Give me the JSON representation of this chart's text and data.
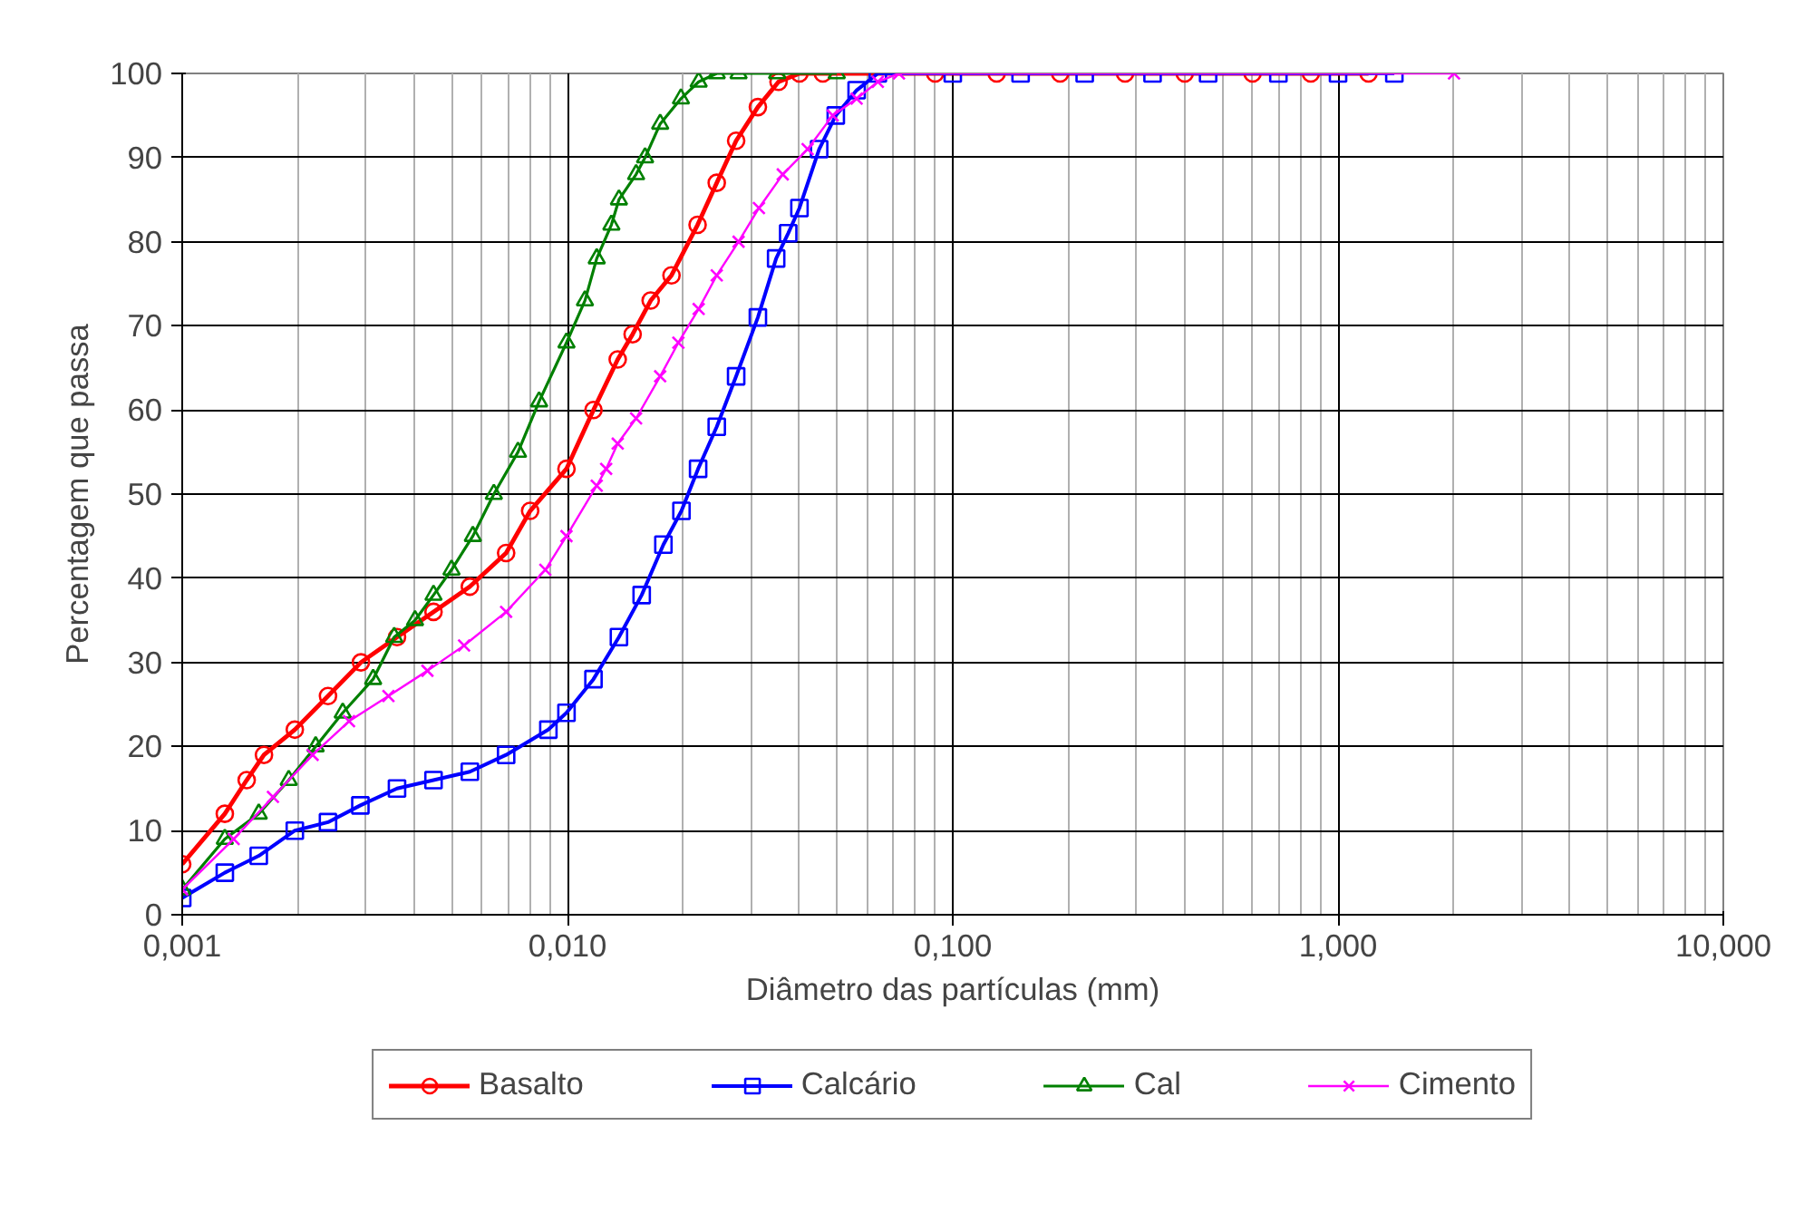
{
  "chart_data": {
    "type": "line",
    "xlabel": "Diâmetro das partículas (mm)",
    "ylabel": "Percentagem que passa",
    "log": "x",
    "grid": true,
    "legend": "bottom",
    "xlim": [
      0.001,
      10
    ],
    "xticks": [
      {
        "value": 0.001,
        "label": "0,001"
      },
      {
        "value": 0.01,
        "label": "0,010"
      },
      {
        "value": 0.1,
        "label": "0,100"
      },
      {
        "value": 1,
        "label": "1,000"
      },
      {
        "value": 10,
        "label": "10,000"
      }
    ],
    "ylim": [
      0,
      100
    ],
    "yticks": [
      0,
      10,
      20,
      30,
      40,
      50,
      60,
      70,
      80,
      90,
      100
    ],
    "series": [
      {
        "name": "Basalto",
        "color": "#ff0000",
        "marker": "circle",
        "x": [
          0.001,
          0.00129,
          0.00147,
          0.00163,
          0.00196,
          0.00239,
          0.00291,
          0.00361,
          0.00449,
          0.00558,
          0.00693,
          0.008,
          0.00994,
          0.01168,
          0.0135,
          0.01476,
          0.01644,
          0.01862,
          0.02176,
          0.0244,
          0.0274,
          0.0312,
          0.0353,
          0.04,
          0.046,
          0.09,
          0.13,
          0.19,
          0.28,
          0.4,
          0.6,
          0.85,
          1.2
        ],
        "values": [
          6,
          12,
          16,
          19,
          22,
          26,
          30,
          33,
          36,
          39,
          43,
          48,
          53,
          60,
          66,
          69,
          73,
          76,
          82,
          87,
          92,
          96,
          99,
          100,
          100,
          100,
          100,
          100,
          100,
          100,
          100,
          100,
          100
        ]
      },
      {
        "name": "Calcário",
        "color": "#0000ff",
        "marker": "square",
        "x": [
          0.001,
          0.00129,
          0.00158,
          0.00196,
          0.00239,
          0.0029,
          0.00361,
          0.00449,
          0.00558,
          0.00693,
          0.00892,
          0.00994,
          0.01168,
          0.0136,
          0.01558,
          0.01774,
          0.01976,
          0.02183,
          0.0244,
          0.0274,
          0.0312,
          0.0348,
          0.0374,
          0.04,
          0.045,
          0.0497,
          0.0563,
          0.0639,
          0.1,
          0.15,
          0.22,
          0.33,
          0.46,
          0.7,
          1.0,
          1.4
        ],
        "values": [
          2,
          5,
          7,
          10,
          11,
          13,
          15,
          16,
          17,
          19,
          22,
          24,
          28,
          33,
          38,
          44,
          48,
          53,
          58,
          64,
          71,
          78,
          81,
          84,
          91,
          95,
          98,
          100,
          100,
          100,
          100,
          100,
          100,
          100,
          100,
          100
        ]
      },
      {
        "name": "Cal",
        "color": "#008000",
        "marker": "triangle",
        "x": [
          0.001,
          0.00129,
          0.00158,
          0.00189,
          0.00222,
          0.00261,
          0.00313,
          0.00355,
          0.00402,
          0.00449,
          0.005,
          0.00568,
          0.00644,
          0.00744,
          0.00844,
          0.00994,
          0.0111,
          0.01191,
          0.013,
          0.0136,
          0.01507,
          0.0159,
          0.0174,
          0.0197,
          0.0219,
          0.0244,
          0.0278,
          0.035,
          0.05
        ],
        "values": [
          3,
          9,
          12,
          16,
          20,
          24,
          28,
          33,
          35,
          38,
          41,
          45,
          50,
          55,
          61,
          68,
          73,
          78,
          82,
          85,
          88,
          90,
          94,
          97,
          99,
          100,
          100,
          100,
          100
        ]
      },
      {
        "name": "Cimento",
        "color": "#ff00ff",
        "marker": "cross",
        "x": [
          0.001,
          0.00136,
          0.00172,
          0.00218,
          0.00271,
          0.00343,
          0.00433,
          0.00539,
          0.00693,
          0.00876,
          0.00994,
          0.01191,
          0.0126,
          0.0135,
          0.01507,
          0.0174,
          0.0194,
          0.0219,
          0.0244,
          0.0278,
          0.0314,
          0.0362,
          0.042,
          0.0488,
          0.0563,
          0.0639,
          0.0725,
          2.0
        ],
        "values": [
          3,
          9,
          14,
          19,
          23,
          26,
          29,
          32,
          36,
          41,
          45,
          51,
          53,
          56,
          59,
          64,
          68,
          72,
          76,
          80,
          84,
          88,
          91,
          95,
          97,
          99,
          100,
          100
        ]
      }
    ]
  }
}
